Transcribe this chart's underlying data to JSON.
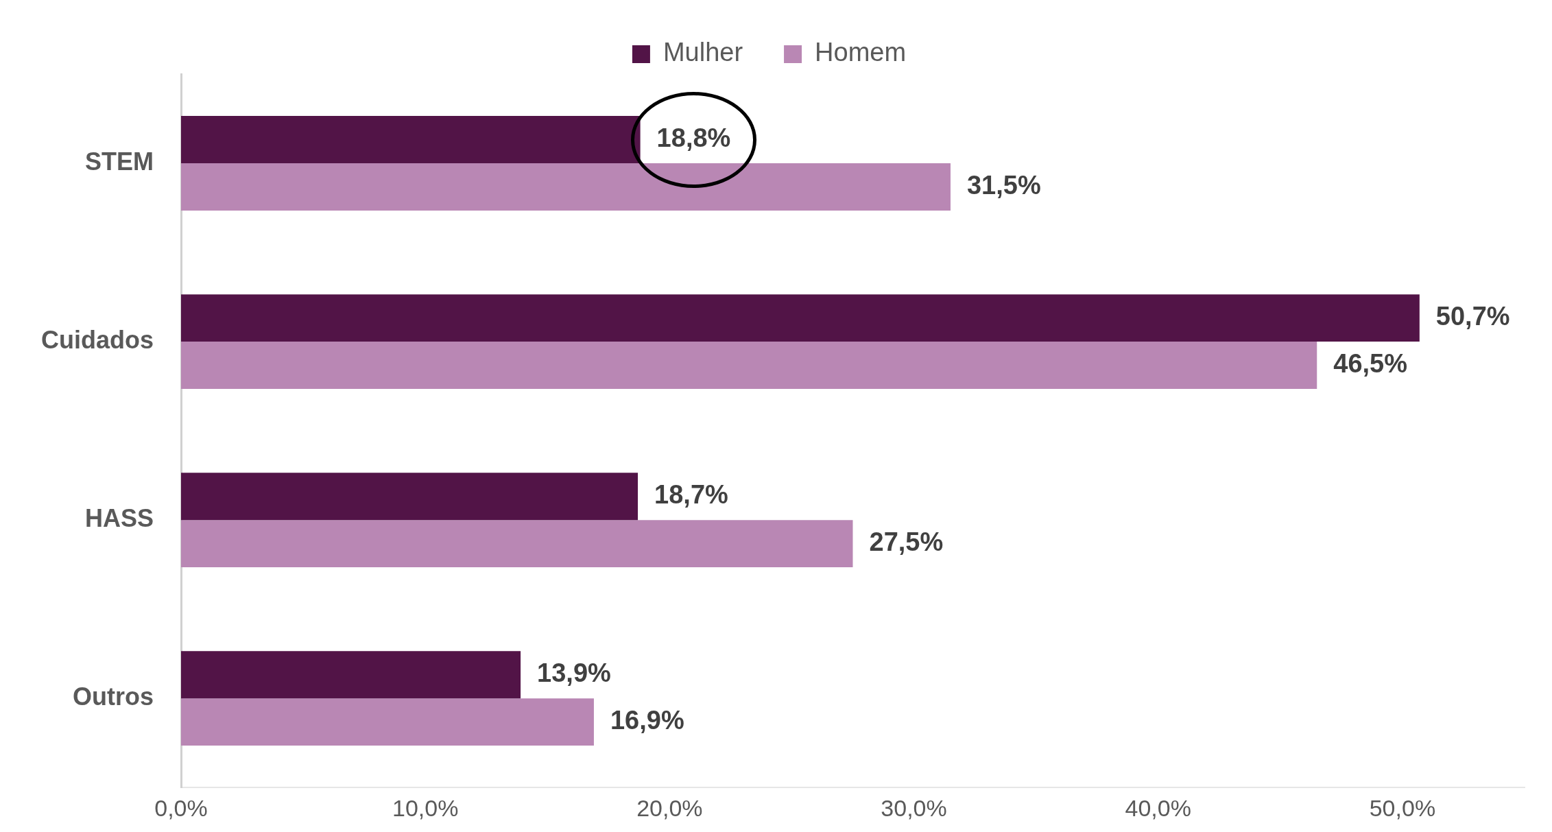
{
  "chart_data": {
    "type": "bar",
    "orientation": "horizontal",
    "categories": [
      "STEM",
      "Cuidados",
      "HASS",
      "Outros"
    ],
    "series": [
      {
        "name": "Mulher",
        "color": "#521447",
        "values": [
          18.8,
          50.7,
          18.7,
          13.9
        ],
        "value_labels": [
          "18,8%",
          "50,7%",
          "18,7%",
          "13,9%"
        ]
      },
      {
        "name": "Homem",
        "color": "#b987b4",
        "values": [
          31.5,
          46.5,
          27.5,
          16.9
        ],
        "value_labels": [
          "31,5%",
          "46,5%",
          "27,5%",
          "16,9%"
        ]
      }
    ],
    "xlim": [
      0,
      55
    ],
    "xticks": [
      {
        "value": 0,
        "label": "0,0%"
      },
      {
        "value": 10,
        "label": "10,0%"
      },
      {
        "value": 20,
        "label": "20,0%"
      },
      {
        "value": 30,
        "label": "30,0%"
      },
      {
        "value": 40,
        "label": "40,0%"
      },
      {
        "value": 50,
        "label": "50,0%"
      }
    ],
    "legend": "top",
    "grid": false
  }
}
